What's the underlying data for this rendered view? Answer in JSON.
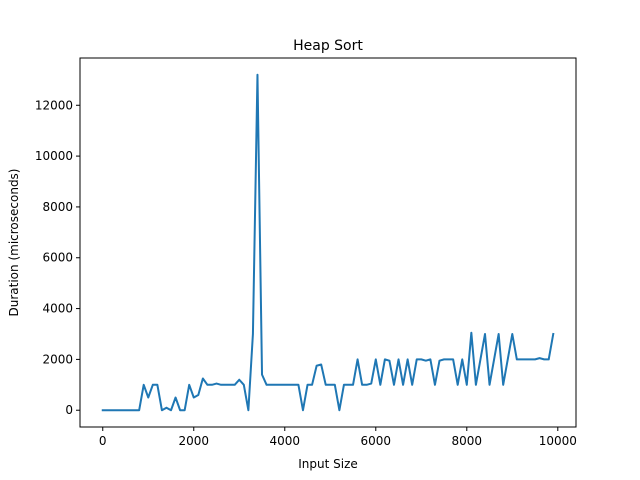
{
  "chart_data": {
    "type": "line",
    "title": "Heap Sort",
    "xlabel": "Input Size",
    "ylabel": "Duration (microseconds)",
    "xlim": [
      -500,
      10400
    ],
    "ylim": [
      -660,
      13860
    ],
    "xticks": [
      0,
      2000,
      4000,
      6000,
      8000,
      10000
    ],
    "yticks": [
      0,
      2000,
      4000,
      6000,
      8000,
      10000,
      12000
    ],
    "grid": false,
    "series": [
      {
        "color": "#1f77b4",
        "x": [
          0,
          100,
          200,
          300,
          400,
          500,
          600,
          700,
          800,
          900,
          1000,
          1100,
          1200,
          1300,
          1400,
          1500,
          1600,
          1700,
          1800,
          1900,
          2000,
          2100,
          2200,
          2300,
          2400,
          2500,
          2600,
          2700,
          2800,
          2900,
          3000,
          3100,
          3200,
          3300,
          3400,
          3500,
          3600,
          3700,
          3800,
          3900,
          4000,
          4100,
          4200,
          4300,
          4400,
          4500,
          4600,
          4700,
          4800,
          4900,
          5000,
          5100,
          5200,
          5300,
          5400,
          5500,
          5600,
          5700,
          5800,
          5900,
          6000,
          6100,
          6200,
          6300,
          6400,
          6500,
          6600,
          6700,
          6800,
          6900,
          7000,
          7100,
          7200,
          7300,
          7400,
          7500,
          7600,
          7700,
          7800,
          7900,
          8000,
          8100,
          8200,
          8300,
          8400,
          8500,
          8600,
          8700,
          8800,
          8900,
          9000,
          9100,
          9200,
          9300,
          9400,
          9500,
          9600,
          9700,
          9800,
          9900
        ],
        "values": [
          0,
          0,
          0,
          0,
          0,
          0,
          0,
          0,
          0,
          1000,
          500,
          1000,
          1000,
          0,
          100,
          0,
          500,
          0,
          0,
          1000,
          500,
          600,
          1250,
          1000,
          1000,
          1050,
          1000,
          1000,
          1000,
          1000,
          1200,
          1000,
          0,
          3000,
          13200,
          1400,
          1000,
          1000,
          1000,
          1000,
          1000,
          1000,
          1000,
          1000,
          0,
          1000,
          1000,
          1750,
          1800,
          1000,
          1000,
          1000,
          0,
          1000,
          1000,
          1000,
          2000,
          1000,
          1000,
          1050,
          2000,
          1000,
          2000,
          1950,
          1000,
          2000,
          1000,
          2000,
          1000,
          2000,
          2000,
          1950,
          2000,
          1000,
          1950,
          2000,
          2000,
          2000,
          1000,
          2000,
          1000,
          3050,
          1000,
          2000,
          3000,
          1000,
          2000,
          3000,
          1000,
          2000,
          3000,
          2000,
          2000,
          2000,
          2000,
          2000,
          2050,
          2000,
          2000,
          3000
        ]
      }
    ]
  }
}
